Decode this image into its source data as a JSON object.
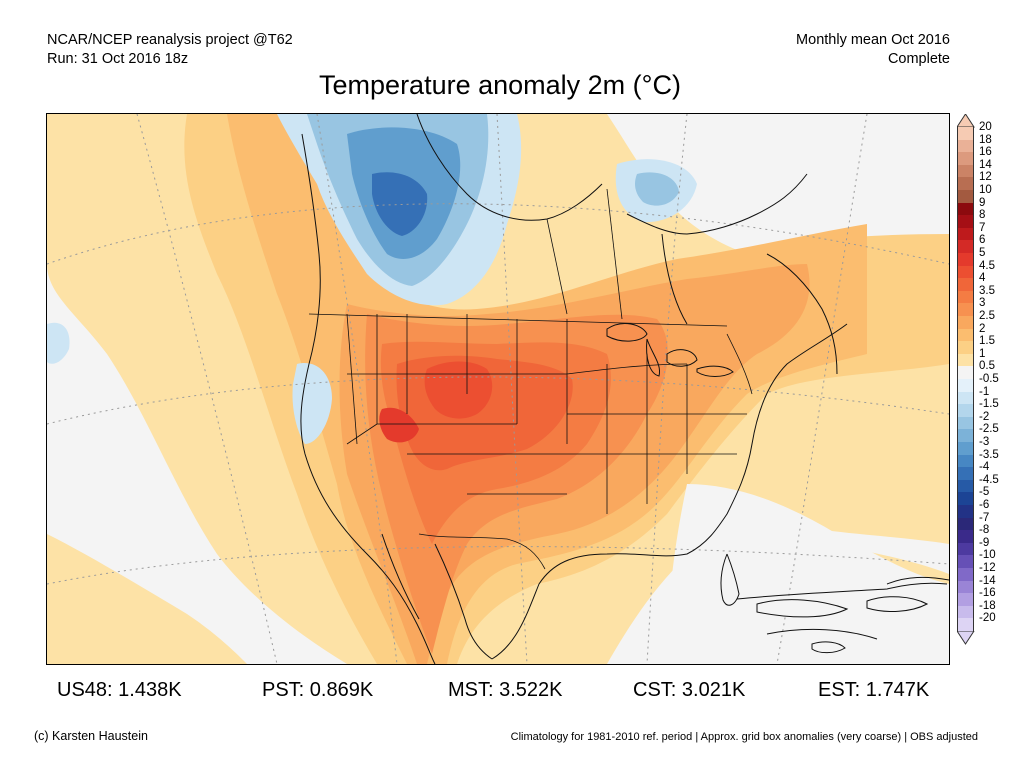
{
  "header": {
    "left_line1": "NCAR/NCEP reanalysis project @T62",
    "left_line2": "Run: 31 Oct 2016 18z",
    "right_line1": "Monthly mean Oct 2016",
    "right_line2": "Complete",
    "title": "Temperature anomaly 2m (°C)"
  },
  "colorbar": {
    "levels": [
      {
        "label": "20",
        "color": "#f6cbb3"
      },
      {
        "label": "18",
        "color": "#eab197"
      },
      {
        "label": "16",
        "color": "#dc9a7e"
      },
      {
        "label": "14",
        "color": "#cb8366"
      },
      {
        "label": "12",
        "color": "#b86e52"
      },
      {
        "label": "10",
        "color": "#a35a40"
      },
      {
        "label": "9",
        "color": "#8c0a0e"
      },
      {
        "label": "8",
        "color": "#a50f15"
      },
      {
        "label": "7",
        "color": "#be1a1c"
      },
      {
        "label": "6",
        "color": "#d42a26"
      },
      {
        "label": "5",
        "color": "#e43a2c"
      },
      {
        "label": "4.5",
        "color": "#ec4f31"
      },
      {
        "label": "4",
        "color": "#f06639"
      },
      {
        "label": "3.5",
        "color": "#f47c43"
      },
      {
        "label": "3",
        "color": "#f79150"
      },
      {
        "label": "2.5",
        "color": "#f9a85e"
      },
      {
        "label": "2",
        "color": "#fbbd6f"
      },
      {
        "label": "1.5",
        "color": "#fcd085"
      },
      {
        "label": "1",
        "color": "#fde2a6"
      },
      {
        "label": "0.5",
        "color": "#f4f4f4"
      },
      {
        "label": "-0.5",
        "color": "#e4f1fa"
      },
      {
        "label": "-1",
        "color": "#cde5f4"
      },
      {
        "label": "-1.5",
        "color": "#b3d6ec"
      },
      {
        "label": "-2",
        "color": "#98c5e2"
      },
      {
        "label": "-2.5",
        "color": "#7cb2d8"
      },
      {
        "label": "-3",
        "color": "#609ece"
      },
      {
        "label": "-3.5",
        "color": "#4787c3"
      },
      {
        "label": "-4",
        "color": "#3570b6"
      },
      {
        "label": "-4.5",
        "color": "#265aa6"
      },
      {
        "label": "-5",
        "color": "#1c4495"
      },
      {
        "label": "-6",
        "color": "#223286"
      },
      {
        "label": "-7",
        "color": "#2b2878"
      },
      {
        "label": "-8",
        "color": "#3a2a8a"
      },
      {
        "label": "-9",
        "color": "#4d3aa0"
      },
      {
        "label": "-10",
        "color": "#6650b6"
      },
      {
        "label": "-12",
        "color": "#8069c8"
      },
      {
        "label": "-14",
        "color": "#9a84d6"
      },
      {
        "label": "-16",
        "color": "#b29fe2"
      },
      {
        "label": "-18",
        "color": "#c8bbec"
      },
      {
        "label": "-20",
        "color": "#ddd4f4"
      }
    ]
  },
  "stats": {
    "us48": "US48: 1.438K",
    "pst": "PST: 0.869K",
    "mst": "MST: 3.522K",
    "cst": "CST: 3.021K",
    "est": "EST: 1.747K"
  },
  "footer": {
    "credit": "(c) Karsten Haustein",
    "note": "Climatology for 1981-2010 ref. period | Approx. grid box anomalies (very coarse) | OBS adjusted"
  }
}
